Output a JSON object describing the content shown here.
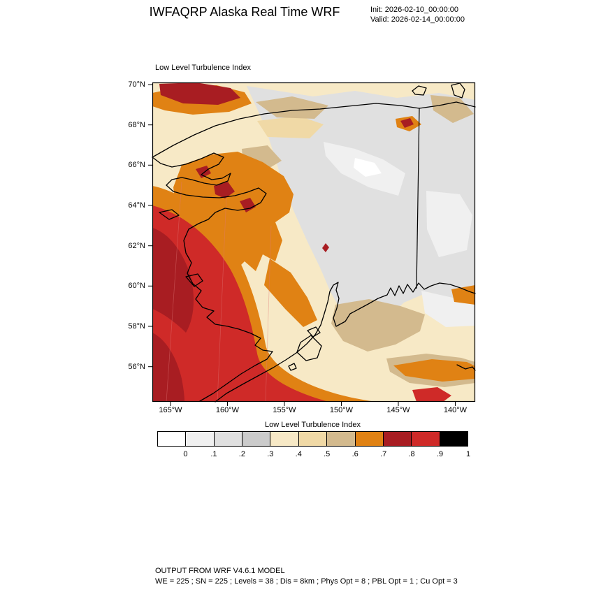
{
  "header": {
    "title": "IWFAQRP Alaska Real Time WRF",
    "init_label": "Init: 2026-02-10_00:00:00",
    "valid_label": "Valid: 2026-02-14_00:00:00"
  },
  "map": {
    "field_label": "Low Level Turbulence Index",
    "lat_ticks": [
      "70°N",
      "68°N",
      "66°N",
      "64°N",
      "62°N",
      "60°N",
      "58°N",
      "56°N"
    ],
    "lon_ticks": [
      "165°W",
      "160°W",
      "155°W",
      "150°W",
      "145°W",
      "140°W"
    ]
  },
  "colorbar": {
    "title": "Low Level Turbulence Index",
    "tick_labels": [
      "0",
      ".1",
      ".2",
      ".3",
      ".4",
      ".5",
      ".6",
      ".7",
      ".8",
      ".9",
      "1"
    ],
    "colors": [
      "#ffffff",
      "#f0f0f0",
      "#e0e0e0",
      "#cbcbcb",
      "#f7e9c6",
      "#f0d9a6",
      "#d3ba8e",
      "#e08214",
      "#a81d22",
      "#cf2a28",
      "#000000"
    ]
  },
  "footer": {
    "line1": "OUTPUT FROM WRF V4.6.1 MODEL",
    "line2": "WE = 225 ; SN = 225 ; Levels = 38 ; Dis = 8km ; Phys Opt = 8 ; PBL Opt = 1 ; Cu Opt = 3"
  }
}
